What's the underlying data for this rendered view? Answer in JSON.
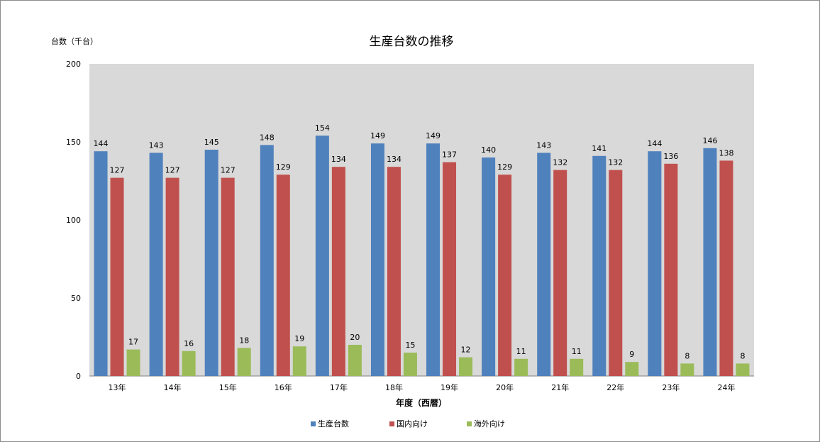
{
  "chart_data": {
    "type": "bar",
    "title": "生産台数の推移",
    "ylabel": "台数（千台）",
    "xlabel": "年度（西暦）",
    "categories": [
      "13年",
      "14年",
      "15年",
      "16年",
      "17年",
      "18年",
      "19年",
      "20年",
      "21年",
      "22年",
      "23年",
      "24年"
    ],
    "series": [
      {
        "name": "生産台数",
        "color": "#4f81bd",
        "values": [
          144,
          143,
          145,
          148,
          154,
          149,
          149,
          140,
          143,
          141,
          144,
          146
        ]
      },
      {
        "name": "国内向け",
        "color": "#c0504d",
        "values": [
          127,
          127,
          127,
          129,
          134,
          134,
          137,
          129,
          132,
          132,
          136,
          138
        ]
      },
      {
        "name": "海外向け",
        "color": "#9bbb59",
        "values": [
          17,
          16,
          18,
          19,
          20,
          15,
          12,
          11,
          11,
          9,
          8,
          8
        ]
      }
    ],
    "ylim": [
      0,
      200
    ],
    "yticks": [
      0,
      50,
      100,
      150,
      200
    ],
    "plot_background": "#d9d9d9",
    "grid": false,
    "data_labels": true,
    "legend_position": "bottom"
  }
}
